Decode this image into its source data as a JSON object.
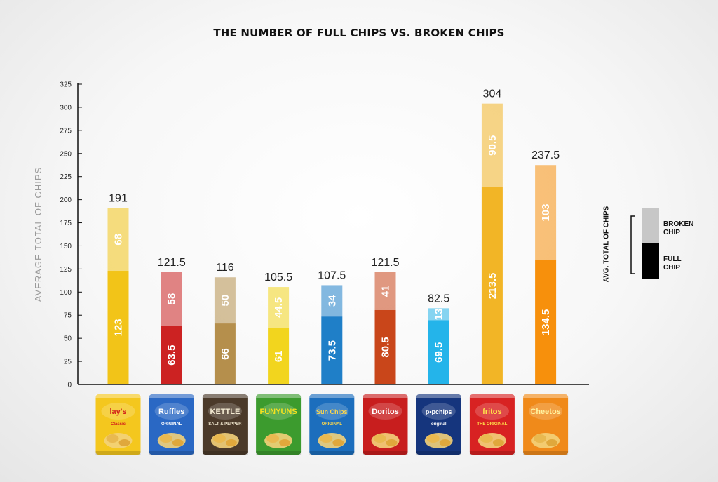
{
  "colors": {
    "lays": "#f2c418",
    "ruffles": "#cc2222",
    "kettle": "#b58f4c",
    "funyuns": "#f2d51e",
    "sunchips": "#1f7fc8",
    "doritos": "#c9461a",
    "popchips": "#24b4ea",
    "fritos": "#f2b526",
    "cheetos": "#f7900c",
    "legend_broken": "#c7c7c7",
    "legend_full": "#000000"
  },
  "chart_data": {
    "type": "bar",
    "stacked": true,
    "title": "THE NUMBER OF FULL CHIPS VS. BROKEN CHIPS",
    "xlabel": "",
    "ylabel": "AVERAGE TOTAL OF CHIPS",
    "ylim": [
      0,
      325
    ],
    "yticks": [
      "0",
      "25",
      "50",
      "75",
      "100",
      "125",
      "150",
      "175",
      "200",
      "225",
      "250",
      "275",
      "300",
      "325"
    ],
    "categories": [
      "Lay's Classic",
      "Ruffles",
      "Kettle",
      "Funyuns",
      "Sun Chips",
      "Doritos",
      "Popchips",
      "Fritos",
      "Cheetos"
    ],
    "series": [
      {
        "name": "FULL CHIP",
        "values": [
          123,
          63.5,
          66,
          61,
          73.5,
          80.5,
          69.5,
          213.5,
          134.5
        ],
        "labels": [
          "123",
          "63.5",
          "66",
          "61",
          "73.5",
          "80.5",
          "69.5",
          "213.5",
          "134.5"
        ]
      },
      {
        "name": "BROKEN CHIP",
        "values": [
          68,
          58,
          50,
          44.5,
          34,
          41,
          13,
          90.5,
          103
        ],
        "labels": [
          "68",
          "58",
          "50",
          "44.5",
          "34",
          "41",
          "13",
          "90.5",
          "103"
        ]
      }
    ],
    "totals": [
      191,
      121.5,
      116,
      105.5,
      107.5,
      121.5,
      82.5,
      304,
      237.5
    ],
    "total_labels": [
      "191",
      "121.5",
      "116",
      "105.5",
      "107.5",
      "121.5",
      "82.5",
      "304",
      "237.5"
    ],
    "legend": {
      "position": "right",
      "axis_label": "AVG. TOTAL OF CHIPS",
      "broken_line1": "BROKEN",
      "broken_line2": "CHIP",
      "full_line1": "FULL",
      "full_line2": "CHIP"
    }
  },
  "bags": [
    {
      "name": "lays",
      "logo": "lay's",
      "sub": "Classic",
      "bg": "#f4c71e",
      "fg": "#d2201a"
    },
    {
      "name": "ruffles",
      "logo": "Ruffles",
      "sub": "ORIGINAL",
      "bg": "#2a68c4",
      "fg": "#ffffff"
    },
    {
      "name": "kettle",
      "logo": "KETTLE",
      "sub": "SALT & PEPPER",
      "bg": "#4b3a2a",
      "fg": "#f3ead2"
    },
    {
      "name": "funyuns",
      "logo": "FUNYUNS",
      "sub": "",
      "bg": "#3c9b2e",
      "fg": "#f6e21f"
    },
    {
      "name": "sunchips",
      "logo": "Sun Chips",
      "sub": "ORIGINAL",
      "bg": "#1c6ebd",
      "fg": "#ffd84a"
    },
    {
      "name": "doritos",
      "logo": "Doritos",
      "sub": "",
      "bg": "#c81e1e",
      "fg": "#ffffff"
    },
    {
      "name": "popchips",
      "logo": "p•pchips",
      "sub": "original",
      "bg": "#15357d",
      "fg": "#ffffff"
    },
    {
      "name": "fritos",
      "logo": "fritos",
      "sub": "THE ORIGINAL",
      "bg": "#d82222",
      "fg": "#ffe14a"
    },
    {
      "name": "cheetos",
      "logo": "Cheetos",
      "sub": "",
      "bg": "#f08a1a",
      "fg": "#fff3a0"
    }
  ]
}
